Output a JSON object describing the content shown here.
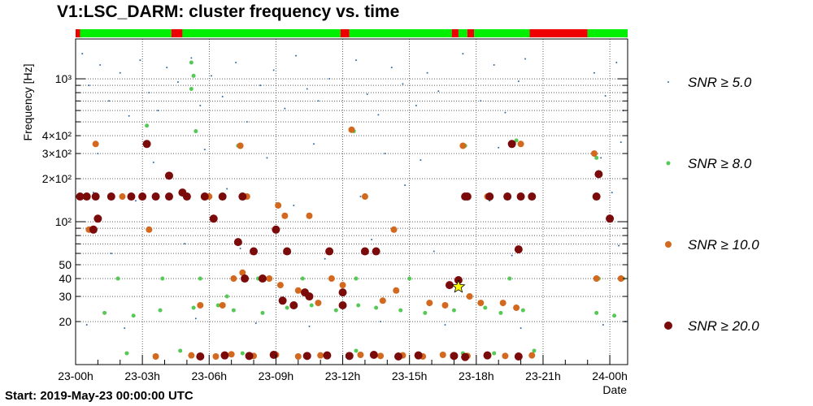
{
  "title": "V1:LSC_DARM: cluster frequency vs. time",
  "footer": "Start: 2019-May-23 00:00:00 UTC",
  "chart_data": {
    "type": "scatter",
    "title": "V1:LSC_DARM: cluster frequency vs. time",
    "xlabel": "Date",
    "ylabel": "Frequency [Hz]",
    "x_unit": "hours since 2019-May-23 00:00:00 UTC",
    "xlim": [
      0,
      24.8
    ],
    "ylim": [
      10,
      1900
    ],
    "yscale": "log",
    "grid": true,
    "legend_position": "right",
    "x_ticks": [
      {
        "value": 0,
        "label": "23-00h"
      },
      {
        "value": 3,
        "label": "23-03h"
      },
      {
        "value": 6,
        "label": "23-06h"
      },
      {
        "value": 9,
        "label": "23-09h"
      },
      {
        "value": 12,
        "label": "23-12h"
      },
      {
        "value": 15,
        "label": "23-15h"
      },
      {
        "value": 18,
        "label": "23-18h"
      },
      {
        "value": 21,
        "label": "23-21h"
      },
      {
        "value": 24,
        "label": "24-00h"
      }
    ],
    "y_ticks": [
      {
        "value": 20,
        "label": "20"
      },
      {
        "value": 30,
        "label": "30"
      },
      {
        "value": 40,
        "label": "40"
      },
      {
        "value": 50,
        "label": "50"
      },
      {
        "value": 100,
        "label": "10²"
      },
      {
        "value": 200,
        "label": "2×10²"
      },
      {
        "value": 300,
        "label": "3×10²"
      },
      {
        "value": 400,
        "label": "4×10²"
      },
      {
        "value": 1000,
        "label": "10³"
      }
    ],
    "state_segments": [
      {
        "start": 0.0,
        "end": 0.2,
        "state": "off"
      },
      {
        "start": 0.2,
        "end": 4.3,
        "state": "on"
      },
      {
        "start": 4.3,
        "end": 4.8,
        "state": "off"
      },
      {
        "start": 4.8,
        "end": 11.9,
        "state": "on"
      },
      {
        "start": 11.9,
        "end": 12.3,
        "state": "off"
      },
      {
        "start": 12.3,
        "end": 16.9,
        "state": "on"
      },
      {
        "start": 16.9,
        "end": 17.2,
        "state": "off"
      },
      {
        "start": 17.2,
        "end": 17.6,
        "state": "on"
      },
      {
        "start": 17.6,
        "end": 17.9,
        "state": "off"
      },
      {
        "start": 17.9,
        "end": 20.4,
        "state": "on"
      },
      {
        "start": 20.4,
        "end": 23.0,
        "state": "off"
      },
      {
        "start": 23.0,
        "end": 24.8,
        "state": "on"
      }
    ],
    "state_colors": {
      "on": "#00ee00",
      "off": "#ee0000"
    },
    "series": [
      {
        "name": "SNR ≥ 5.0",
        "color": "#2b6ca8",
        "points": [
          [
            0.3,
            1500
          ],
          [
            0.6,
            900
          ],
          [
            1.1,
            1250
          ],
          [
            1.5,
            700
          ],
          [
            2.0,
            1100
          ],
          [
            2.4,
            550
          ],
          [
            2.9,
            1350
          ],
          [
            3.3,
            800
          ],
          [
            3.7,
            600
          ],
          [
            4.1,
            1200
          ],
          [
            4.6,
            950
          ],
          [
            5.2,
            1400
          ],
          [
            5.6,
            650
          ],
          [
            6.1,
            1050
          ],
          [
            6.6,
            750
          ],
          [
            7.2,
            1300
          ],
          [
            7.7,
            500
          ],
          [
            8.3,
            900
          ],
          [
            8.9,
            1150
          ],
          [
            9.4,
            620
          ],
          [
            9.9,
            1450
          ],
          [
            10.4,
            850
          ],
          [
            10.9,
            700
          ],
          [
            11.4,
            1000
          ],
          [
            12.6,
            1350
          ],
          [
            13.1,
            780
          ],
          [
            13.6,
            560
          ],
          [
            14.2,
            1200
          ],
          [
            14.7,
            920
          ],
          [
            15.3,
            650
          ],
          [
            15.8,
            1100
          ],
          [
            16.3,
            820
          ],
          [
            17.4,
            1500
          ],
          [
            18.2,
            700
          ],
          [
            18.8,
            1250
          ],
          [
            19.3,
            580
          ],
          [
            19.9,
            960
          ],
          [
            20.2,
            1380
          ],
          [
            23.3,
            1100
          ],
          [
            23.8,
            760
          ],
          [
            24.3,
            1300
          ],
          [
            24.6,
            600
          ],
          [
            1.0,
            300
          ],
          [
            3.5,
            260
          ],
          [
            5.8,
            320
          ],
          [
            8.6,
            280
          ],
          [
            10.7,
            350
          ],
          [
            13.9,
            300
          ],
          [
            15.5,
            270
          ],
          [
            19.0,
            330
          ],
          [
            23.6,
            280
          ],
          [
            24.5,
            360
          ],
          [
            0.8,
            160
          ],
          [
            2.7,
            140
          ],
          [
            6.8,
            170
          ],
          [
            9.8,
            130
          ],
          [
            12.8,
            150
          ],
          [
            14.8,
            180
          ],
          [
            18.6,
            140
          ],
          [
            24.1,
            160
          ],
          [
            1.6,
            60
          ],
          [
            4.9,
            70
          ],
          [
            7.4,
            65
          ],
          [
            11.2,
            55
          ],
          [
            13.3,
            75
          ],
          [
            16.1,
            62
          ],
          [
            19.6,
            58
          ],
          [
            24.4,
            68
          ],
          [
            0.5,
            19
          ],
          [
            2.2,
            18
          ],
          [
            5.4,
            21
          ],
          [
            8.1,
            19.5
          ],
          [
            10.5,
            18.5
          ],
          [
            13.7,
            20
          ],
          [
            16.6,
            19
          ],
          [
            20.0,
            18
          ],
          [
            23.7,
            19
          ],
          [
            24.7,
            20
          ]
        ]
      },
      {
        "name": "SNR ≥ 8.0",
        "color": "#55c855",
        "points": [
          [
            1.3,
            23
          ],
          [
            2.6,
            22
          ],
          [
            3.8,
            24
          ],
          [
            5.3,
            25
          ],
          [
            6.4,
            26
          ],
          [
            7.1,
            24
          ],
          [
            8.4,
            23
          ],
          [
            9.5,
            25
          ],
          [
            10.6,
            26
          ],
          [
            11.7,
            24
          ],
          [
            12.7,
            26
          ],
          [
            13.5,
            25
          ],
          [
            14.6,
            24
          ],
          [
            15.7,
            23
          ],
          [
            17.0,
            24
          ],
          [
            18.4,
            25
          ],
          [
            19.1,
            23
          ],
          [
            20.1,
            24
          ],
          [
            23.4,
            23
          ],
          [
            24.2,
            22
          ],
          [
            1.9,
            40
          ],
          [
            3.9,
            40
          ],
          [
            5.6,
            40
          ],
          [
            8.2,
            40
          ],
          [
            10.2,
            40
          ],
          [
            12.6,
            40
          ],
          [
            15.0,
            40
          ],
          [
            19.5,
            40
          ],
          [
            23.5,
            40
          ],
          [
            24.6,
            40
          ],
          [
            5.2,
            1300
          ],
          [
            5.3,
            1050
          ],
          [
            5.2,
            850
          ],
          [
            3.2,
            470
          ],
          [
            5.4,
            430
          ],
          [
            7.3,
            340
          ],
          [
            12.5,
            430
          ],
          [
            17.5,
            340
          ],
          [
            19.8,
            370
          ],
          [
            23.4,
            280
          ],
          [
            2.3,
            12
          ],
          [
            4.7,
            12.5
          ],
          [
            7.5,
            12
          ],
          [
            12.6,
            12.5
          ],
          [
            17.4,
            12
          ],
          [
            18.8,
            12
          ],
          [
            20.6,
            12.5
          ],
          [
            6.8,
            30
          ]
        ]
      },
      {
        "name": "SNR ≥ 10.0",
        "color": "#d2691e",
        "points": [
          [
            0.9,
            350
          ],
          [
            0.6,
            88
          ],
          [
            2.1,
            150
          ],
          [
            3.3,
            88
          ],
          [
            6.0,
            150
          ],
          [
            7.4,
            340
          ],
          [
            7.7,
            150
          ],
          [
            9.1,
            130
          ],
          [
            9.4,
            110
          ],
          [
            10.5,
            110
          ],
          [
            12.4,
            440
          ],
          [
            13.0,
            150
          ],
          [
            14.3,
            88
          ],
          [
            17.4,
            340
          ],
          [
            18.5,
            150
          ],
          [
            20.0,
            350
          ],
          [
            23.3,
            300
          ],
          [
            23.4,
            40
          ],
          [
            24.5,
            40
          ],
          [
            5.6,
            26
          ],
          [
            6.6,
            26
          ],
          [
            7.5,
            44
          ],
          [
            7.1,
            40
          ],
          [
            8.7,
            40
          ],
          [
            9.2,
            36
          ],
          [
            10.0,
            33
          ],
          [
            10.9,
            27
          ],
          [
            11.5,
            40
          ],
          [
            12.0,
            36
          ],
          [
            13.8,
            28
          ],
          [
            14.4,
            33
          ],
          [
            15.9,
            27
          ],
          [
            16.6,
            26
          ],
          [
            17.7,
            30
          ],
          [
            18.2,
            27
          ],
          [
            19.2,
            27
          ],
          [
            19.8,
            25
          ],
          [
            5.2,
            11.6
          ],
          [
            6.3,
            11.4
          ],
          [
            7.0,
            11.8
          ],
          [
            8.0,
            11.5
          ],
          [
            9.0,
            11.7
          ],
          [
            10.0,
            11.4
          ],
          [
            11.0,
            11.6
          ],
          [
            12.8,
            11.7
          ],
          [
            13.7,
            11.5
          ],
          [
            14.7,
            11.6
          ],
          [
            15.6,
            11.4
          ],
          [
            16.5,
            11.7
          ],
          [
            17.6,
            11.5
          ],
          [
            20.5,
            11.6
          ],
          [
            19.3,
            11.5
          ],
          [
            3.6,
            11.4
          ]
        ]
      },
      {
        "name": "SNR ≥ 20.0",
        "color": "#7b0a0a",
        "points": [
          [
            0.2,
            150
          ],
          [
            0.5,
            150
          ],
          [
            0.9,
            150
          ],
          [
            1.6,
            150
          ],
          [
            2.5,
            150
          ],
          [
            3.0,
            150
          ],
          [
            3.6,
            150
          ],
          [
            4.2,
            150
          ],
          [
            5.0,
            150
          ],
          [
            5.8,
            150
          ],
          [
            6.6,
            150
          ],
          [
            7.5,
            150
          ],
          [
            17.6,
            150
          ],
          [
            18.6,
            150
          ],
          [
            19.4,
            150
          ],
          [
            20.0,
            150
          ],
          [
            20.5,
            150
          ],
          [
            23.4,
            150
          ],
          [
            1.0,
            105
          ],
          [
            6.2,
            105
          ],
          [
            24.0,
            105
          ],
          [
            0.8,
            88
          ],
          [
            9.0,
            88
          ],
          [
            3.2,
            350
          ],
          [
            4.2,
            210
          ],
          [
            4.8,
            160
          ],
          [
            19.6,
            350
          ],
          [
            23.5,
            215
          ],
          [
            7.3,
            72
          ],
          [
            8.0,
            62
          ],
          [
            9.5,
            62
          ],
          [
            11.4,
            62
          ],
          [
            13.0,
            62
          ],
          [
            13.5,
            62
          ],
          [
            19.9,
            64
          ],
          [
            7.6,
            40
          ],
          [
            8.4,
            40
          ],
          [
            10.3,
            32
          ],
          [
            12.0,
            32
          ],
          [
            12.0,
            26
          ],
          [
            16.8,
            36
          ],
          [
            17.2,
            39
          ],
          [
            17.5,
            150
          ],
          [
            9.8,
            26
          ],
          [
            10.5,
            30
          ],
          [
            9.3,
            28
          ],
          [
            5.6,
            11.4
          ],
          [
            6.7,
            11.6
          ],
          [
            7.8,
            11.5
          ],
          [
            8.9,
            11.7
          ],
          [
            10.4,
            11.5
          ],
          [
            11.3,
            11.6
          ],
          [
            12.3,
            11.5
          ],
          [
            13.4,
            11.7
          ],
          [
            14.5,
            11.4
          ],
          [
            15.4,
            11.6
          ],
          [
            17.0,
            11.5
          ],
          [
            17.5,
            11.3
          ],
          [
            18.5,
            11.6
          ],
          [
            19.9,
            11.4
          ]
        ]
      }
    ],
    "highlight": {
      "x": 17.2,
      "y": 35,
      "marker": "star",
      "color": "#ffff00"
    }
  },
  "legend": {
    "items": [
      {
        "label": "SNR ≥ 5.0",
        "color": "#2b6ca8",
        "size": 1
      },
      {
        "label": "SNR ≥ 8.0",
        "color": "#55c855",
        "size": 2.5
      },
      {
        "label": "SNR ≥ 10.0",
        "color": "#d2691e",
        "size": 4
      },
      {
        "label": "SNR ≥ 20.0",
        "color": "#7b0a0a",
        "size": 5
      }
    ]
  }
}
